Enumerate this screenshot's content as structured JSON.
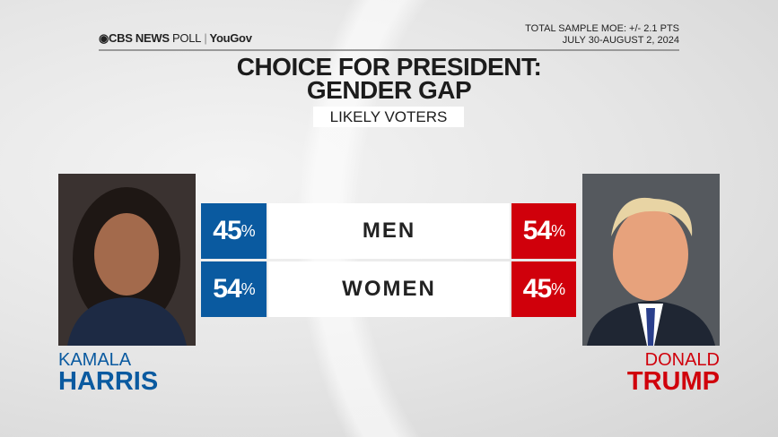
{
  "header": {
    "logo_brand": "CBS NEWS",
    "logo_poll": "POLL",
    "logo_partner": "YouGov",
    "moe": "TOTAL SAMPLE MOE: +/- 2.1 PTS",
    "dates": "JULY 30-AUGUST 2, 2024"
  },
  "title_line1": "CHOICE FOR PRESIDENT:",
  "title_line2": "GENDER GAP",
  "subtitle": "LIKELY VOTERS",
  "colors": {
    "harris": "#0a5aa0",
    "trump": "#d0000b"
  },
  "candidates": {
    "left": {
      "first": "KAMALA",
      "last": "HARRIS"
    },
    "right": {
      "first": "DONALD",
      "last": "TRUMP"
    }
  },
  "chart_data": {
    "type": "table",
    "categories": [
      "MEN",
      "WOMEN"
    ],
    "series": [
      {
        "name": "KAMALA HARRIS",
        "values": [
          45,
          54
        ]
      },
      {
        "name": "DONALD TRUMP",
        "values": [
          54,
          45
        ]
      }
    ],
    "unit": "%"
  }
}
